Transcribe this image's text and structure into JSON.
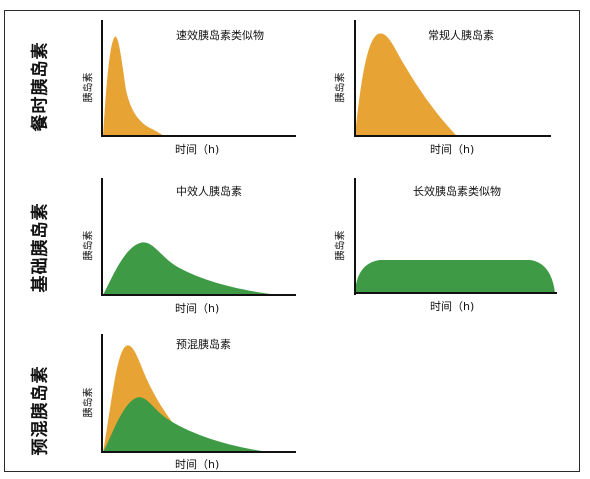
{
  "rows": [
    {
      "label": "餐时胰岛素"
    },
    {
      "label": "基础胰岛素"
    },
    {
      "label": "预混胰岛素"
    }
  ],
  "panels": [
    {
      "title": "速效胰岛素类似物",
      "ylabel": "胰岛素",
      "xlabel": "时间（h)"
    },
    {
      "title": "常规人胰岛素",
      "ylabel": "胰岛素",
      "xlabel": "时间（h)"
    },
    {
      "title": "中效人胰岛素",
      "ylabel": "胰岛素",
      "xlabel": "时间（h)"
    },
    {
      "title": "长效胰岛素类似物",
      "ylabel": "胰岛素",
      "xlabel": "时间（h)"
    },
    {
      "title": "预混胰岛素",
      "ylabel": "胰岛素",
      "xlabel": "时间（h)"
    }
  ],
  "colors": {
    "orange": "#E8A335",
    "green": "#3E9A45",
    "axis": "#111111"
  }
}
